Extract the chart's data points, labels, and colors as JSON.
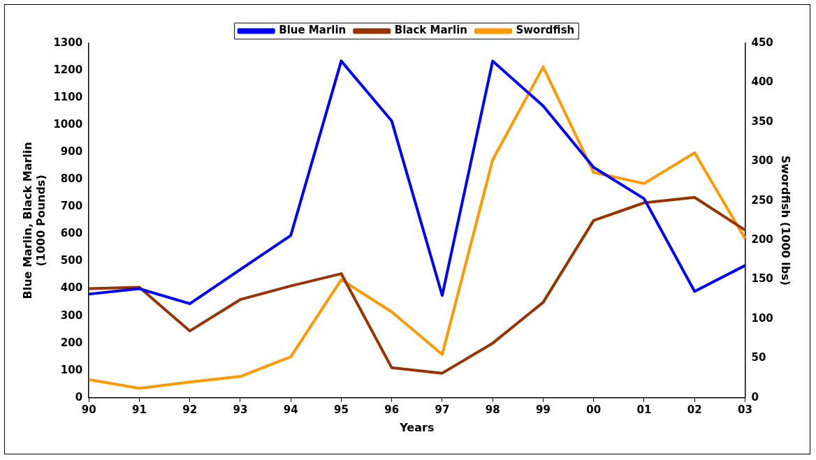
{
  "chart_data": {
    "type": "line",
    "xlabel": "Years",
    "ylabel": "Blue Marlin, Black Marlin\n(1000 Pounds)",
    "y2label": "Swordfish (1000 lbs)",
    "categories": [
      "90",
      "91",
      "92",
      "93",
      "94",
      "95",
      "96",
      "97",
      "98",
      "99",
      "00",
      "01",
      "02",
      "03"
    ],
    "series": [
      {
        "name": "Blue Marlin",
        "color": "#0000ff",
        "values": [
          380,
          400,
          345,
          470,
          595,
          1235,
          1015,
          375,
          1235,
          1070,
          845,
          730,
          390,
          485
        ]
      },
      {
        "name": "Black Marlin",
        "color": "#993300",
        "values": [
          400,
          405,
          245,
          360,
          410,
          455,
          110,
          90,
          200,
          350,
          650,
          715,
          735,
          615
        ]
      },
      {
        "name": "Swordfish",
        "color": "#ff9900",
        "axis": "y2",
        "values": [
          23,
          12,
          20,
          27,
          52,
          150,
          109,
          55,
          302,
          420,
          286,
          272,
          311,
          202
        ]
      }
    ],
    "ylim": [
      0,
      1300
    ],
    "yticks": [
      0,
      100,
      200,
      300,
      400,
      500,
      600,
      700,
      800,
      900,
      1000,
      1100,
      1200,
      1300
    ],
    "y2lim": [
      0,
      450
    ],
    "y2ticks": [
      0,
      50,
      100,
      150,
      200,
      250,
      300,
      350,
      400,
      450
    ],
    "grid": false,
    "legend": "top",
    "marker": "none",
    "line_style": "solid"
  }
}
